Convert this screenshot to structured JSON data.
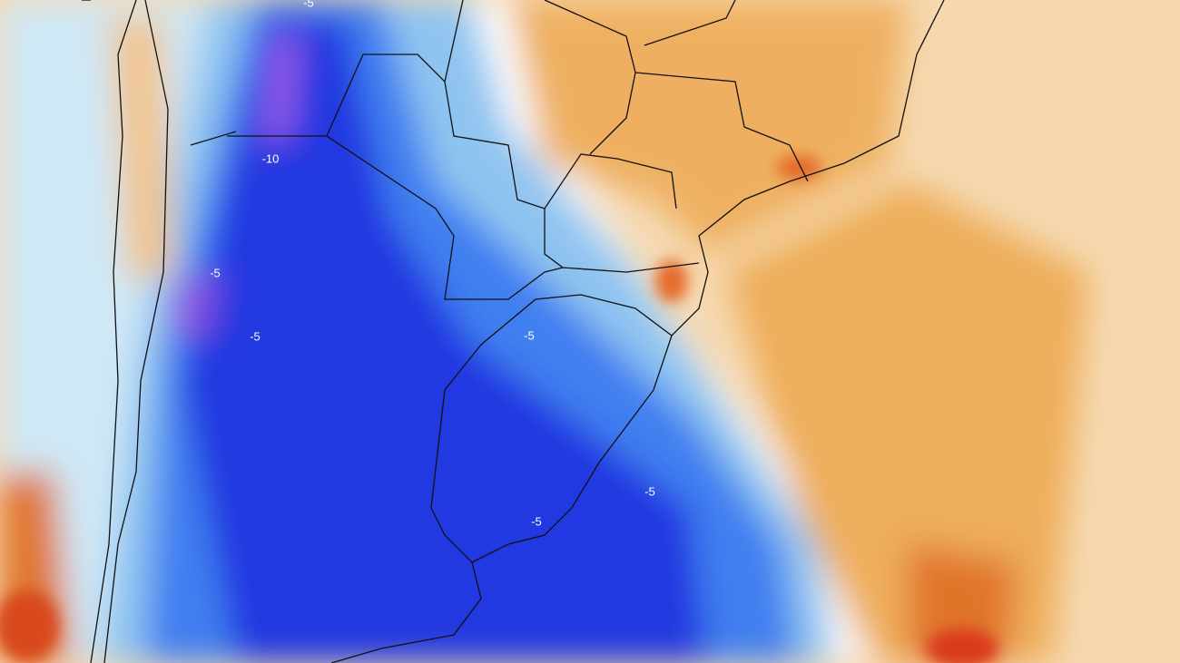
{
  "contour_labels": [
    "-5",
    "-10",
    "-5",
    "-5",
    "-5",
    "-5",
    "-5"
  ]
}
